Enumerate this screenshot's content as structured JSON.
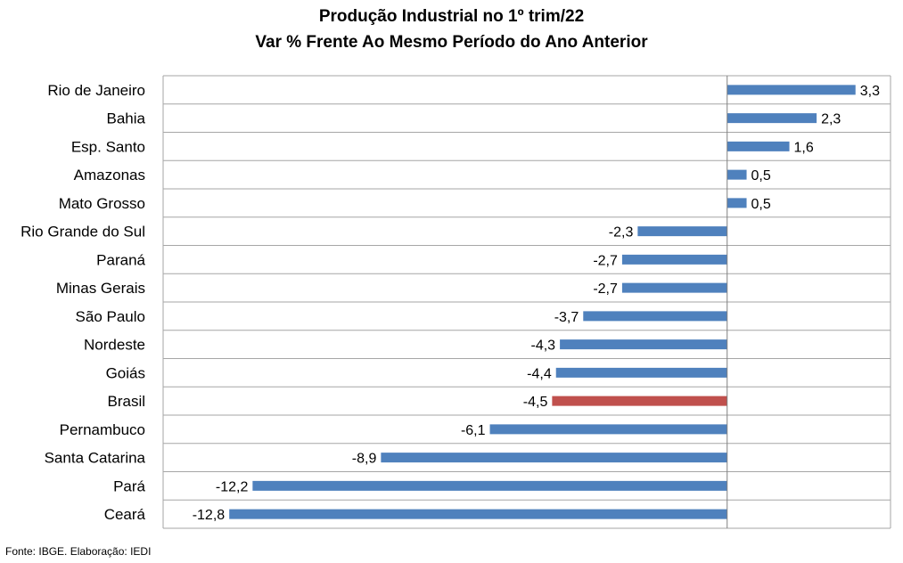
{
  "chart_data": {
    "type": "bar",
    "orientation": "horizontal",
    "title": "Produção Industrial no 1º trim/22",
    "subtitle": "Var % Frente Ao Mesmo Período do Ano Anterior",
    "categories": [
      "Rio de Janeiro",
      "Bahia",
      "Esp. Santo",
      "Amazonas",
      "Mato Grosso",
      "Rio Grande do Sul",
      "Paraná",
      "Minas Gerais",
      "São Paulo",
      "Nordeste",
      "Goiás",
      "Brasil",
      "Pernambuco",
      "Santa Catarina",
      "Pará",
      "Ceará"
    ],
    "values": [
      3.3,
      2.3,
      1.6,
      0.5,
      0.5,
      -2.3,
      -2.7,
      -2.7,
      -3.7,
      -4.3,
      -4.4,
      -4.5,
      -6.1,
      -8.9,
      -12.2,
      -12.8
    ],
    "value_labels": [
      "3,3",
      "2,3",
      "1,6",
      "0,5",
      "0,5",
      "-2,3",
      "-2,7",
      "-2,7",
      "-3,7",
      "-4,3",
      "-4,4",
      "-4,5",
      "-6,1",
      "-8,9",
      "-12,2",
      "-12,8"
    ],
    "xlim": [
      -14.5,
      4.2
    ],
    "grid": true,
    "legend": "none",
    "highlight_category": "Brasil",
    "colors": {
      "bar": "#4f81bd",
      "highlight": "#c0504d",
      "grid": "#a6a6a6"
    }
  },
  "source": "Fonte: IBGE. Elaboração: IEDI"
}
